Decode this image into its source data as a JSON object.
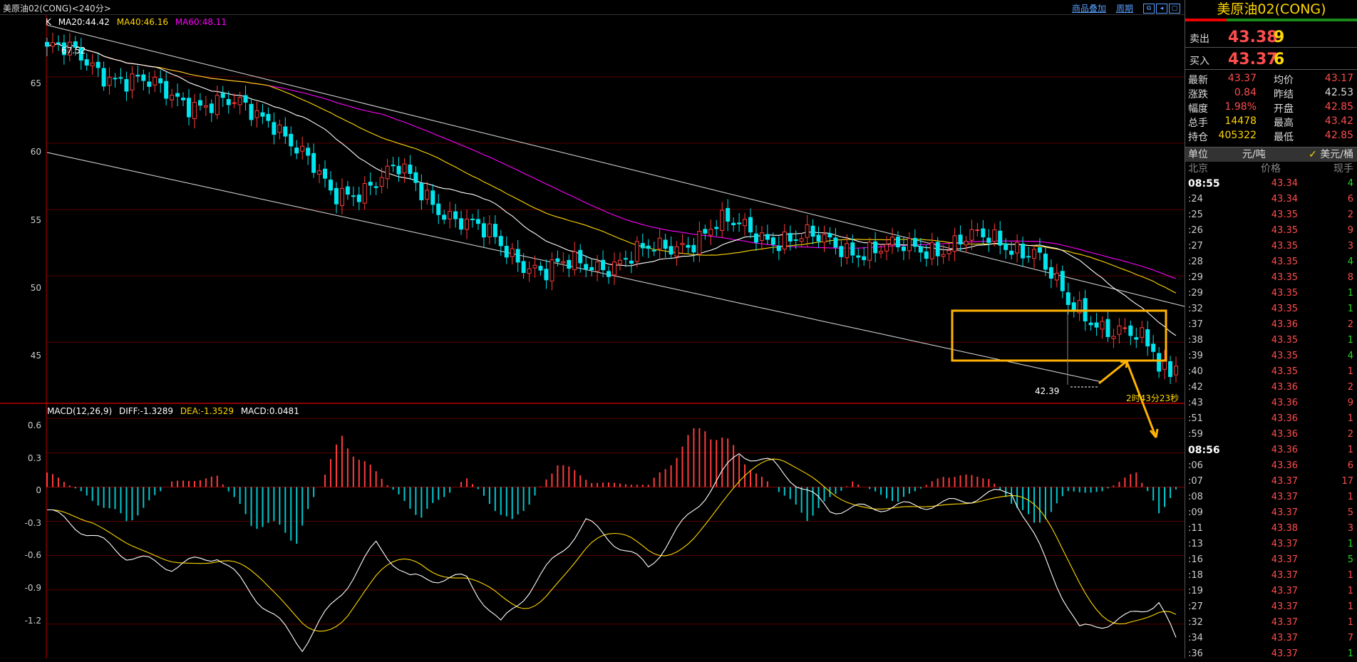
{
  "title": "美原油02(CONG)<240分>",
  "top_links": [
    "商品叠加",
    "周期"
  ],
  "chart_data": {
    "type": "candlestick",
    "indicators_line": "K",
    "ma_labels": [
      {
        "text": "MA20:44.42",
        "color": "#ffffff"
      },
      {
        "text": "MA40:46.16",
        "color": "#ffd700"
      },
      {
        "text": "MA60:48.11",
        "color": "#ff00ff"
      }
    ],
    "y_ticks": [
      "65",
      "60",
      "55",
      "50",
      "45"
    ],
    "high_label": "67.52",
    "low_label": "42.39",
    "timer_label": "2时43分23秒",
    "macd_legend": [
      {
        "text": "MACD(12,26,9)",
        "color": "#ffffff"
      },
      {
        "text": "DIFF:-1.3289",
        "color": "#ffffff"
      },
      {
        "text": "DEA:-1.3529",
        "color": "#ffd700"
      },
      {
        "text": "MACD:0.0481",
        "color": "#ffffff"
      }
    ],
    "macd_y_ticks": [
      "0.6",
      "0.3",
      "0",
      "-0.3",
      "-0.6",
      "-0.9",
      "-1.2"
    ],
    "price_range": [
      40.5,
      69.5
    ],
    "macd_range": [
      -1.5,
      0.72
    ],
    "price_waypoints": [
      [
        0,
        67.3
      ],
      [
        20,
        63.8
      ],
      [
        40,
        62.0
      ],
      [
        50,
        56.0
      ],
      [
        62,
        57.8
      ],
      [
        74,
        53.8
      ],
      [
        88,
        50.3
      ],
      [
        108,
        51.8
      ],
      [
        118,
        53.8
      ],
      [
        136,
        52.5
      ],
      [
        150,
        51.8
      ],
      [
        162,
        52.7
      ],
      [
        174,
        52.2
      ],
      [
        180,
        47.5
      ],
      [
        190,
        45.9
      ],
      [
        195,
        44.0
      ],
      [
        196,
        42.7
      ],
      [
        200,
        43.37
      ]
    ],
    "macd_waypoints": [
      [
        0,
        -0.2
      ],
      [
        14,
        -0.6
      ],
      [
        22,
        -0.7
      ],
      [
        30,
        -0.6
      ],
      [
        45,
        -1.4
      ],
      [
        58,
        -0.5
      ],
      [
        64,
        -0.8
      ],
      [
        74,
        -0.8
      ],
      [
        80,
        -1.2
      ],
      [
        95,
        -0.3
      ],
      [
        106,
        -0.7
      ],
      [
        122,
        0.3
      ],
      [
        128,
        0.2
      ],
      [
        138,
        -0.2
      ],
      [
        158,
        -0.15
      ],
      [
        170,
        -0.03
      ],
      [
        182,
        -1.25
      ],
      [
        190,
        -1.15
      ],
      [
        196,
        -1.0
      ],
      [
        199,
        -1.35
      ],
      [
        200,
        -1.33
      ]
    ],
    "hist_waypoints": [
      [
        0,
        0.15
      ],
      [
        6,
        -0.05
      ],
      [
        14,
        -0.35
      ],
      [
        22,
        0.05
      ],
      [
        30,
        0.1
      ],
      [
        36,
        -0.35
      ],
      [
        44,
        -0.5
      ],
      [
        52,
        0.5
      ],
      [
        60,
        0.02
      ],
      [
        66,
        -0.3
      ],
      [
        74,
        0.1
      ],
      [
        82,
        -0.4
      ],
      [
        90,
        0.25
      ],
      [
        96,
        0.05
      ],
      [
        106,
        0.02
      ],
      [
        116,
        0.65
      ],
      [
        126,
        0.1
      ],
      [
        134,
        -0.3
      ],
      [
        142,
        0.05
      ],
      [
        150,
        -0.15
      ],
      [
        158,
        0.12
      ],
      [
        166,
        0.1
      ],
      [
        174,
        -0.4
      ],
      [
        180,
        -0.05
      ],
      [
        186,
        -0.05
      ],
      [
        192,
        0.15
      ],
      [
        196,
        -0.25
      ],
      [
        200,
        0.05
      ]
    ],
    "candles": 200
  },
  "panel": {
    "title": "美原油02(CONG)",
    "sell_label": "卖出",
    "sell_price": "43.38",
    "sell_vol": "9",
    "buy_label": "买入",
    "buy_price": "43.37",
    "buy_vol": "6",
    "quote_rows": [
      {
        "k1": "最新",
        "v1": "43.37",
        "c1": "#ff4d4d",
        "k2": "均价",
        "v2": "43.17",
        "c2": "#ff4d4d"
      },
      {
        "k1": "涨跌",
        "v1": "0.84",
        "c1": "#ff4d4d",
        "k2": "昨结",
        "v2": "42.53",
        "c2": "#dddddd"
      },
      {
        "k1": "幅度",
        "v1": "1.98%",
        "c1": "#ff4d4d",
        "k2": "开盘",
        "v2": "42.85",
        "c2": "#ff4d4d"
      },
      {
        "k1": "总手",
        "v1": "14478",
        "c1": "#ffd700",
        "k2": "最高",
        "v2": "43.42",
        "c2": "#ff4d4d"
      },
      {
        "k1": "持仓",
        "v1": "405322",
        "c1": "#ffd700",
        "k2": "最低",
        "v2": "42.85",
        "c2": "#ff4d4d"
      }
    ],
    "unit_label": "单位",
    "unit_a": "元/吨",
    "unit_b": "美元/桶",
    "unit_check": "✓",
    "tick_head": {
      "time": "北京",
      "price": "价格",
      "qty": "现手"
    },
    "ticks": [
      {
        "t": "08:55",
        "p": "43.34",
        "q": "4",
        "qc": "#22dd22",
        "major": true
      },
      {
        "t": ":24",
        "p": "43.34",
        "q": "6",
        "qc": "#ff4d4d"
      },
      {
        "t": ":25",
        "p": "43.35",
        "q": "2",
        "qc": "#ff4d4d"
      },
      {
        "t": ":26",
        "p": "43.35",
        "q": "9",
        "qc": "#ff4d4d"
      },
      {
        "t": ":27",
        "p": "43.35",
        "q": "3",
        "qc": "#ff4d4d"
      },
      {
        "t": ":28",
        "p": "43.35",
        "q": "4",
        "qc": "#22dd22"
      },
      {
        "t": ":29",
        "p": "43.35",
        "q": "8",
        "qc": "#ff4d4d"
      },
      {
        "t": ":29",
        "p": "43.35",
        "q": "1",
        "qc": "#22dd22"
      },
      {
        "t": ":32",
        "p": "43.35",
        "q": "1",
        "qc": "#22dd22"
      },
      {
        "t": ":37",
        "p": "43.36",
        "q": "2",
        "qc": "#ff4d4d"
      },
      {
        "t": ":38",
        "p": "43.35",
        "q": "1",
        "qc": "#22dd22"
      },
      {
        "t": ":39",
        "p": "43.35",
        "q": "4",
        "qc": "#22dd22"
      },
      {
        "t": ":40",
        "p": "43.35",
        "q": "1",
        "qc": "#ff4d4d"
      },
      {
        "t": ":42",
        "p": "43.36",
        "q": "2",
        "qc": "#ff4d4d"
      },
      {
        "t": ":43",
        "p": "43.36",
        "q": "9",
        "qc": "#ff4d4d"
      },
      {
        "t": ":51",
        "p": "43.36",
        "q": "1",
        "qc": "#ff4d4d"
      },
      {
        "t": ":59",
        "p": "43.36",
        "q": "2",
        "qc": "#ff4d4d"
      },
      {
        "t": "08:56",
        "p": "43.36",
        "q": "1",
        "qc": "#ff4d4d",
        "major": true
      },
      {
        "t": ":06",
        "p": "43.36",
        "q": "6",
        "qc": "#ff4d4d"
      },
      {
        "t": ":07",
        "p": "43.37",
        "q": "17",
        "qc": "#ff4d4d"
      },
      {
        "t": ":08",
        "p": "43.37",
        "q": "1",
        "qc": "#ff4d4d"
      },
      {
        "t": ":09",
        "p": "43.37",
        "q": "5",
        "qc": "#ff4d4d"
      },
      {
        "t": ":11",
        "p": "43.38",
        "q": "3",
        "qc": "#ff4d4d"
      },
      {
        "t": ":13",
        "p": "43.37",
        "q": "1",
        "qc": "#22dd22"
      },
      {
        "t": ":16",
        "p": "43.37",
        "q": "5",
        "qc": "#22dd22"
      },
      {
        "t": ":18",
        "p": "43.37",
        "q": "1",
        "qc": "#ff4d4d"
      },
      {
        "t": ":19",
        "p": "43.37",
        "q": "1",
        "qc": "#ff4d4d"
      },
      {
        "t": ":27",
        "p": "43.37",
        "q": "1",
        "qc": "#ff4d4d"
      },
      {
        "t": ":32",
        "p": "43.37",
        "q": "1",
        "qc": "#ff4d4d"
      },
      {
        "t": ":34",
        "p": "43.37",
        "q": "7",
        "qc": "#ff4d4d"
      },
      {
        "t": ":36",
        "p": "43.37",
        "q": "1",
        "qc": "#22dd22"
      }
    ]
  }
}
